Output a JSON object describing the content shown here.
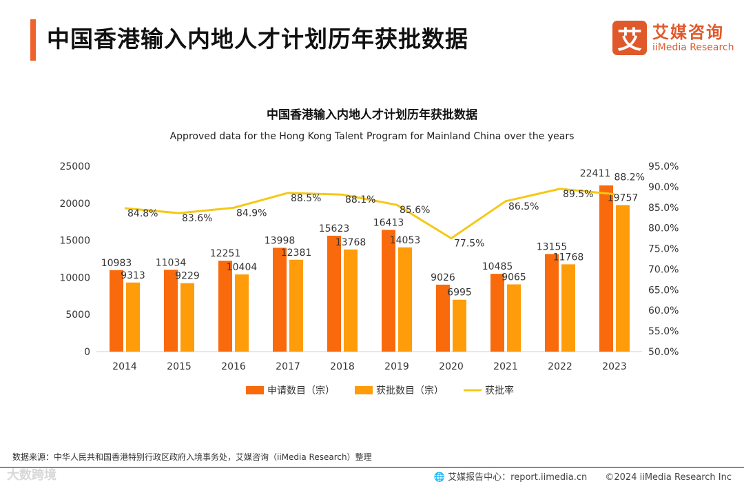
{
  "header": {
    "title": "中国香港输入内地人才计划历年获批数据",
    "logo_mark": "艾",
    "logo_cn": "艾媒咨询",
    "logo_en": "iiMedia Research"
  },
  "chart_data": {
    "type": "bar",
    "title": "中国香港输入内地人才计划历年获批数据",
    "subtitle": "Approved data for the Hong Kong Talent Program for Mainland China over the years",
    "categories": [
      "2014",
      "2015",
      "2016",
      "2017",
      "2018",
      "2019",
      "2020",
      "2021",
      "2022",
      "2023"
    ],
    "series": [
      {
        "name": "申请数目（宗）",
        "type": "bar",
        "axis": "left",
        "color": "#F86A0C",
        "values": [
          10983,
          11034,
          12251,
          13998,
          15623,
          16413,
          9026,
          10485,
          13155,
          22411
        ]
      },
      {
        "name": "获批数目（宗）",
        "type": "bar",
        "axis": "left",
        "color": "#FF9C0A",
        "values": [
          9313,
          9229,
          10404,
          12381,
          13768,
          14053,
          6995,
          9065,
          11768,
          19757
        ]
      },
      {
        "name": "获批率",
        "type": "line",
        "axis": "right",
        "color": "#F5C816",
        "values": [
          84.8,
          83.6,
          84.9,
          88.5,
          88.1,
          85.6,
          77.5,
          86.5,
          89.5,
          88.2
        ]
      }
    ],
    "ylim": [
      0,
      25000
    ],
    "yticks": [
      "0",
      "5000",
      "10000",
      "15000",
      "20000",
      "25000"
    ],
    "y2lim": [
      50,
      95
    ],
    "y2ticks": [
      "50.0%",
      "55.0%",
      "60.0%",
      "65.0%",
      "70.0%",
      "75.0%",
      "80.0%",
      "85.0%",
      "90.0%",
      "95.0%"
    ],
    "legend": "bottom",
    "grid": false
  },
  "footer": {
    "source": "数据来源：中华人民共和国香港特别行政区政府入境事务处，艾媒咨询（iiMedia Research）整理",
    "site": "艾媒报告中心：report.iimedia.cn",
    "copyright": "©2024  iiMedia Research  Inc",
    "watermark": "大数跨境"
  }
}
